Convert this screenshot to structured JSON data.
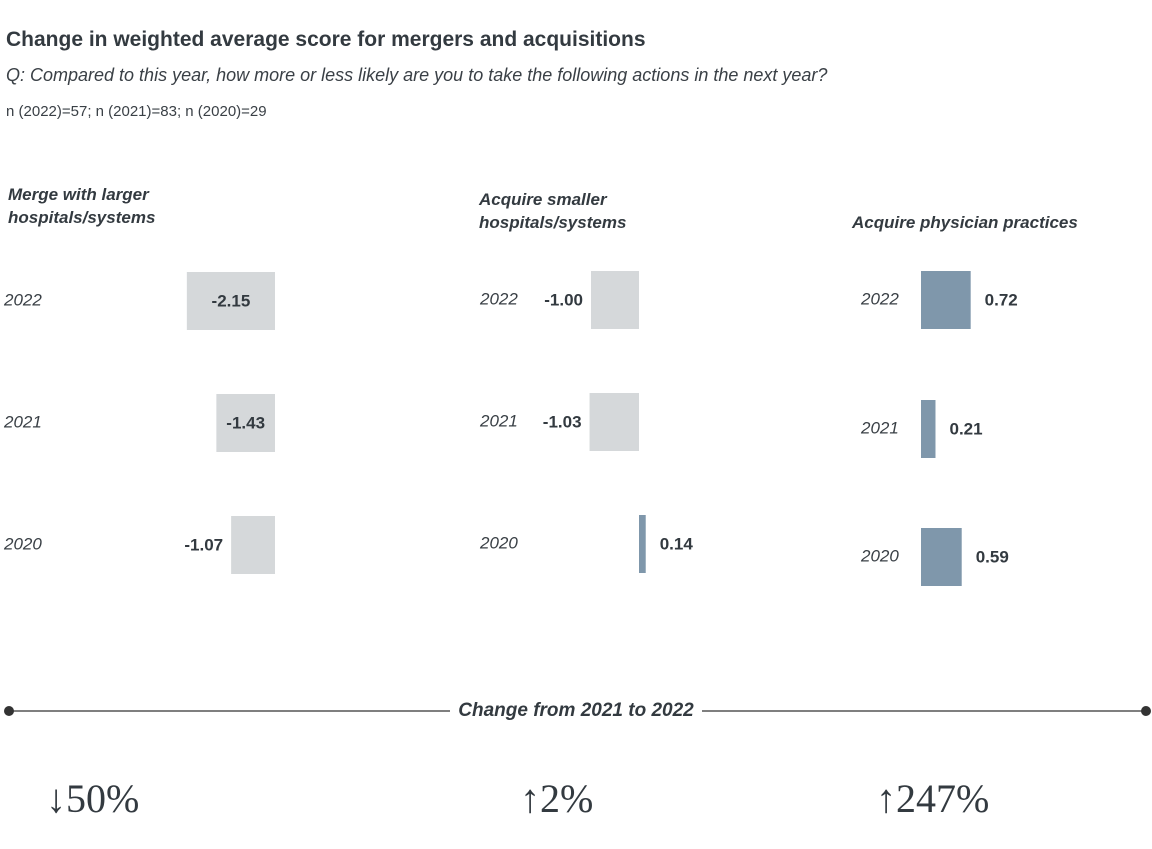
{
  "title": "Change in weighted average score for mergers and acquisitions",
  "subtitle": "Q: Compared to this year, how more or less likely are you to take the following actions in the next year?",
  "note": "n (2022)=57; n (2021)=83; n (2020)=29",
  "chart_data": [
    {
      "type": "bar",
      "orientation": "horizontal",
      "title": "Merge with larger hospitals/systems",
      "categories": [
        "2022",
        "2021",
        "2020"
      ],
      "values": [
        -2.15,
        -1.43,
        -1.07
      ],
      "colors": [
        "#d5d8da",
        "#d5d8da",
        "#d5d8da"
      ]
    },
    {
      "type": "bar",
      "orientation": "horizontal",
      "title": "Acquire smaller hospitals/systems",
      "categories": [
        "2022",
        "2021",
        "2020"
      ],
      "values": [
        -1.0,
        -1.03,
        0.14
      ],
      "value_labels": [
        "-1.00",
        "-1.03",
        "0.14"
      ],
      "colors": [
        "#d5d8da",
        "#d5d8da",
        "#7f97ab"
      ]
    },
    {
      "type": "bar",
      "orientation": "horizontal",
      "title": "Acquire physician practices",
      "categories": [
        "2022",
        "2021",
        "2020"
      ],
      "values": [
        0.72,
        0.21,
        0.59
      ],
      "colors": [
        "#7f97ab",
        "#7f97ab",
        "#7f97ab"
      ]
    }
  ],
  "change_heading": "Change from 2021 to 2022",
  "changes": [
    "↓50%",
    "↑2%",
    "↑247%"
  ]
}
